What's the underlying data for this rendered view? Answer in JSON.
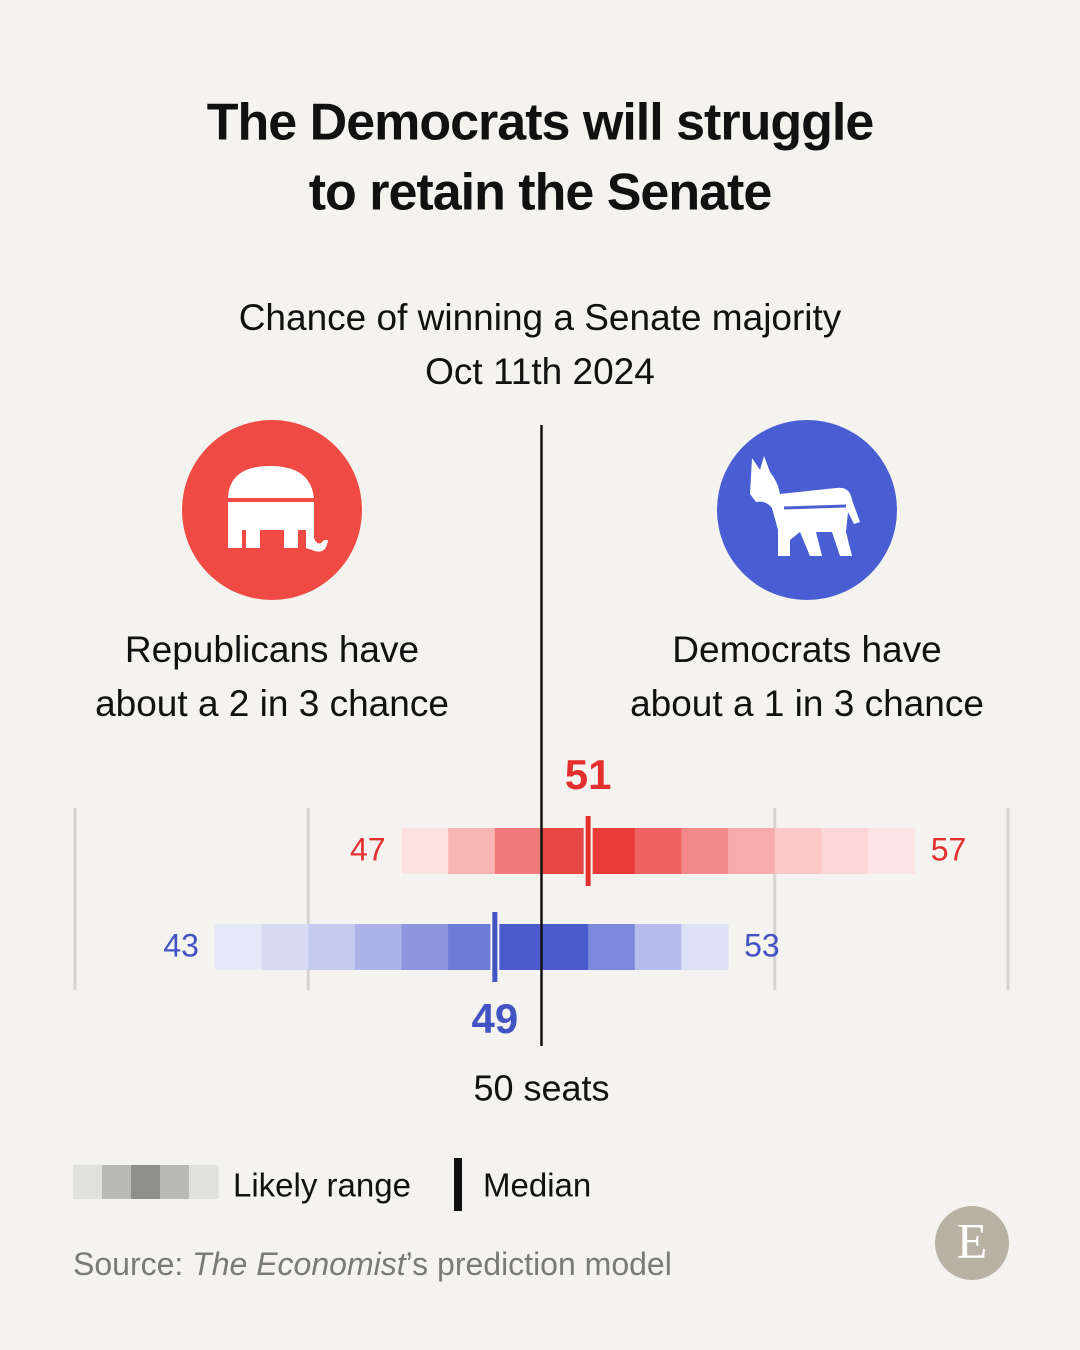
{
  "title": [
    "The Democrats will struggle",
    "to retain the Senate"
  ],
  "chart_data": {
    "type": "range",
    "subtitle": [
      "Chance of winning a Senate majority",
      "Oct 11th 2024"
    ],
    "xlim": [
      40,
      60
    ],
    "gridlines": [
      40,
      45,
      55,
      60
    ],
    "majority_line": {
      "value": 50,
      "label": "50 seats"
    },
    "series": [
      {
        "label": [
          "Republicans have",
          "about a 2 in 3 chance"
        ],
        "color": "#e3302f",
        "icon_color": "#f04a44",
        "low": 47,
        "high": 57,
        "median": 51,
        "cell_colors": [
          "#fde0e0",
          "#f9b4b4",
          "#f07a7a",
          "#e84545",
          "#ea3a3a",
          "#f06262",
          "#f38888",
          "#f8abab",
          "#fbc7c7",
          "#fcd6d6",
          "#fde3e3"
        ]
      },
      {
        "label": [
          "Democrats have",
          "about a 1 in 3 chance"
        ],
        "color": "#4253c4",
        "icon_color": "#4a5ed4",
        "low": 43,
        "high": 53,
        "median": 49,
        "cell_colors": [
          "#e5e8f7",
          "#d7dcf3",
          "#c4cbef",
          "#abb3e8",
          "#8c97df",
          "#6d7bd6",
          "#4a5ccd",
          "#4a5ccd",
          "#7c89da",
          "#b6bded",
          "#dde1f5"
        ]
      }
    ],
    "legend": {
      "range_label": "Likely range",
      "median_label": "Median",
      "range_colors": [
        "#e0e0de",
        "#b9b9b7",
        "#8e8e8c",
        "#b9b9b7",
        "#e0e0de"
      ]
    },
    "source": {
      "prefix": "Source: ",
      "publication": "The Economist",
      "suffix": "’s prediction model"
    }
  }
}
